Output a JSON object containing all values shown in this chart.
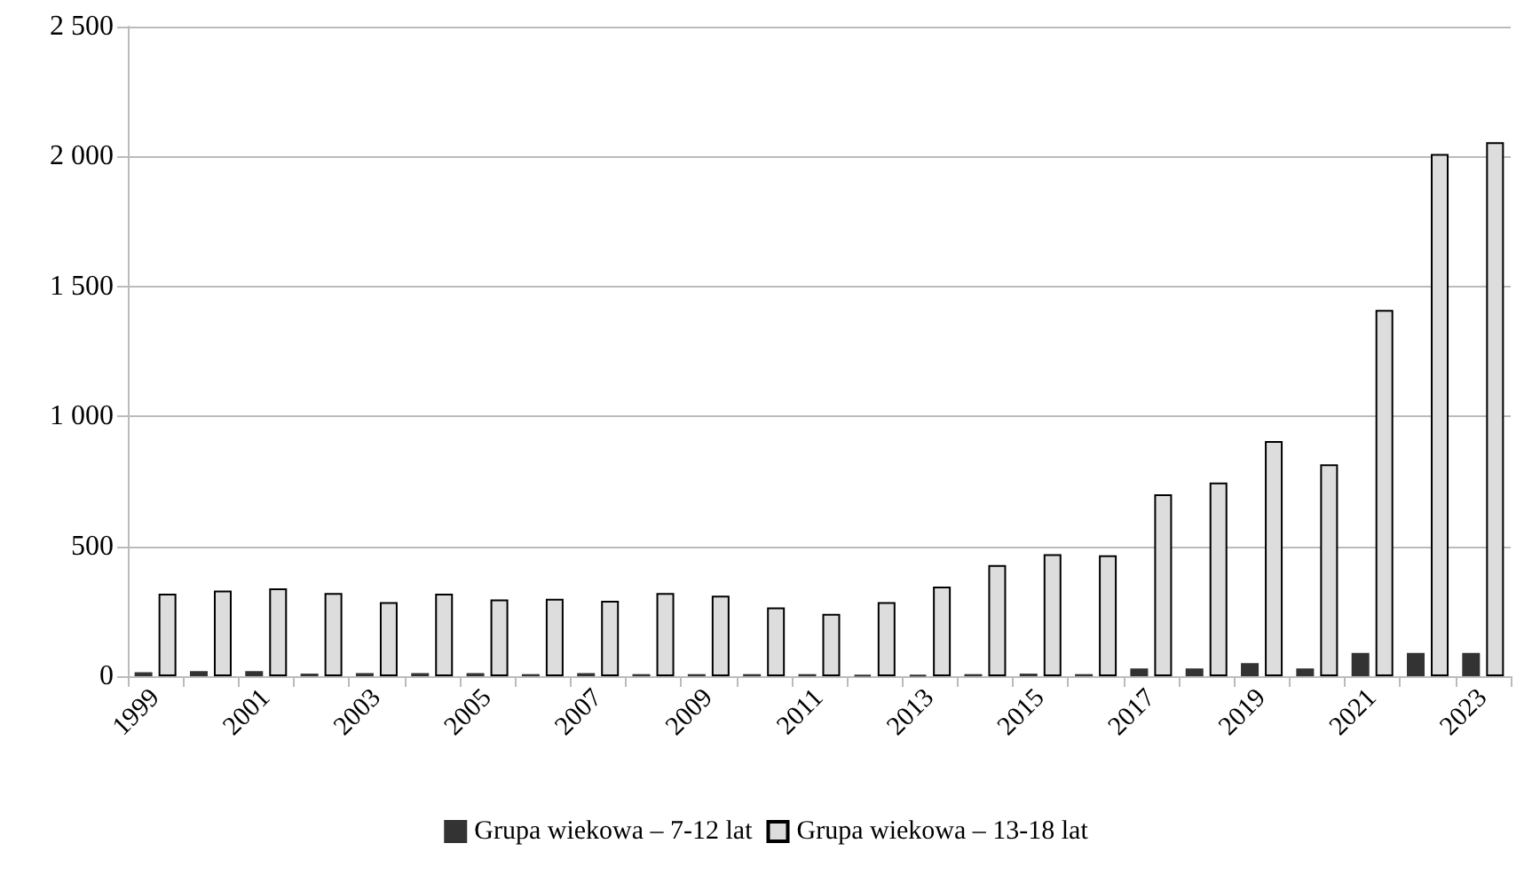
{
  "chart_data": {
    "type": "bar",
    "categories": [
      "1999",
      null,
      "2001",
      null,
      "2003",
      null,
      "2005",
      null,
      "2007",
      null,
      "2009",
      null,
      "2011",
      null,
      "2013",
      null,
      "2015",
      null,
      "2017",
      null,
      "2019",
      null,
      "2021",
      null,
      "2023"
    ],
    "series": [
      {
        "name": "Grupa wiekowa – 7-12 lat",
        "color": "#333333",
        "values": [
          15,
          20,
          20,
          10,
          12,
          12,
          12,
          8,
          12,
          8,
          8,
          8,
          8,
          5,
          5,
          8,
          10,
          8,
          30,
          30,
          50,
          30,
          90,
          90,
          90
        ]
      },
      {
        "name": "Grupa wiekowa – 13-18 lat",
        "color": "#dddddd",
        "values": [
          318,
          330,
          338,
          320,
          285,
          318,
          295,
          298,
          290,
          320,
          310,
          265,
          240,
          285,
          345,
          428,
          470,
          465,
          700,
          745,
          905,
          815,
          1410,
          2010,
          2055
        ]
      }
    ],
    "ylim": [
      0,
      2500
    ],
    "yticks": [
      0,
      500,
      {
        "value": 1000,
        "label": "1 000"
      },
      {
        "value": 1500,
        "label": "1 500"
      },
      {
        "value": 2000,
        "label": "2 000"
      },
      {
        "value": 2500,
        "label": "2 500"
      }
    ],
    "grid": "y",
    "legend": "bottom"
  }
}
